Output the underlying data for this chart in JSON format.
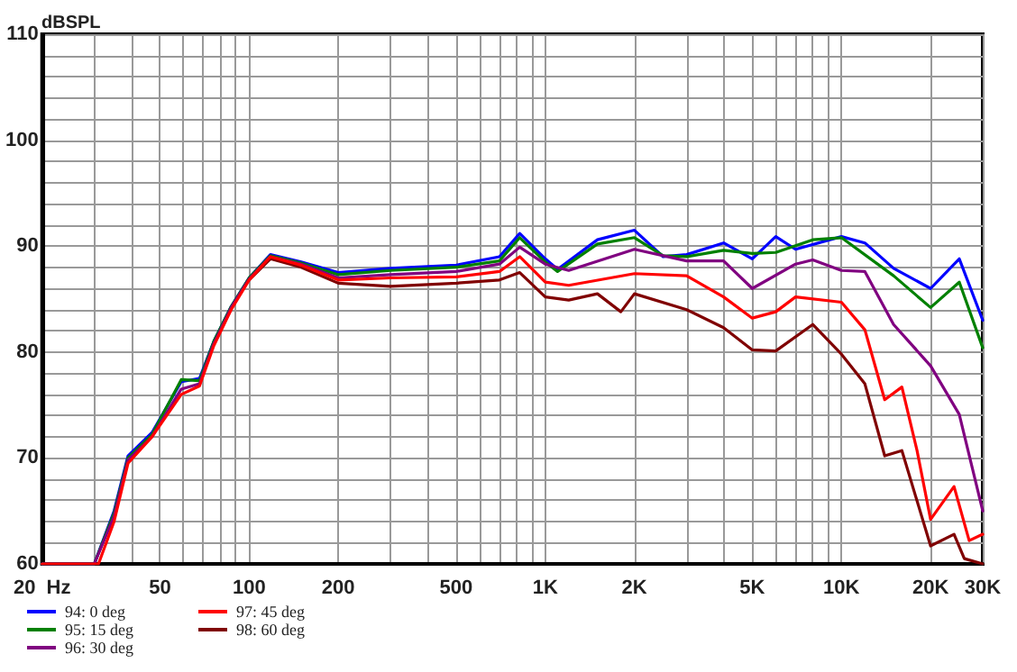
{
  "chart_data": {
    "type": "line",
    "ylabel": "dBSPL",
    "log": "x",
    "grid": true,
    "legend": "bottom left",
    "xlim": [
      20,
      30000
    ],
    "xticks": [
      {
        "value": 20,
        "label": "20  Hz"
      },
      {
        "value": 30,
        "label": null
      },
      {
        "value": 40,
        "label": null
      },
      50,
      {
        "value": 60,
        "label": null
      },
      {
        "value": 70,
        "label": null
      },
      {
        "value": 80,
        "label": null
      },
      {
        "value": 90,
        "label": null
      },
      100,
      200,
      {
        "value": 300,
        "label": null
      },
      {
        "value": 400,
        "label": null
      },
      500,
      {
        "value": 600,
        "label": null
      },
      {
        "value": 700,
        "label": null
      },
      {
        "value": 800,
        "label": null
      },
      {
        "value": 900,
        "label": null
      },
      {
        "value": 1000,
        "label": "1K"
      },
      {
        "value": 2000,
        "label": "2K"
      },
      {
        "value": 3000,
        "label": null
      },
      {
        "value": 4000,
        "label": null
      },
      {
        "value": 5000,
        "label": "5K"
      },
      {
        "value": 6000,
        "label": null
      },
      {
        "value": 7000,
        "label": null
      },
      {
        "value": 8000,
        "label": null
      },
      {
        "value": 9000,
        "label": null
      },
      {
        "value": 10000,
        "label": "10K"
      },
      {
        "value": 20000,
        "label": "20K"
      },
      {
        "value": 30000,
        "label": "30K"
      }
    ],
    "ylim": [
      60,
      110
    ],
    "yticks": [
      60,
      {
        "value": 62,
        "label": null
      },
      {
        "value": 64,
        "label": null
      },
      {
        "value": 66,
        "label": null
      },
      {
        "value": 68,
        "label": null
      },
      70,
      {
        "value": 72,
        "label": null
      },
      {
        "value": 74,
        "label": null
      },
      {
        "value": 76,
        "label": null
      },
      {
        "value": 78,
        "label": null
      },
      80,
      {
        "value": 82,
        "label": null
      },
      {
        "value": 84,
        "label": null
      },
      {
        "value": 86,
        "label": null
      },
      {
        "value": 88,
        "label": null
      },
      90,
      {
        "value": 92,
        "label": null
      },
      {
        "value": 94,
        "label": null
      },
      {
        "value": 96,
        "label": null
      },
      {
        "value": 98,
        "label": null
      },
      100,
      {
        "value": 102,
        "label": null
      },
      {
        "value": 104,
        "label": null
      },
      {
        "value": 106,
        "label": null
      },
      {
        "value": 108,
        "label": null
      },
      110
    ],
    "series": [
      {
        "name": "94: 0 deg",
        "color": "#0000ff",
        "x": [
          20,
          30,
          35,
          39,
          47,
          59,
          68,
          76,
          87,
          100,
          118,
          150,
          200,
          300,
          500,
          700,
          820,
          1000,
          1100,
          1500,
          2000,
          2500,
          3000,
          4000,
          5000,
          6000,
          7000,
          10000,
          12000,
          15000,
          20000,
          25000,
          30000
        ],
        "values": [
          60,
          60,
          65,
          70.2,
          72.4,
          77.2,
          77.5,
          81,
          84.3,
          87,
          89.2,
          88.5,
          87.5,
          87.9,
          88.2,
          89,
          91.2,
          88.8,
          87.8,
          90.6,
          91.5,
          89,
          89.2,
          90.3,
          88.8,
          90.9,
          89.7,
          90.9,
          90.3,
          87.9,
          86,
          88.8,
          83
        ]
      },
      {
        "name": "95: 15 deg",
        "color": "#008000",
        "x": [
          20,
          30,
          35,
          39,
          47,
          59,
          68,
          76,
          87,
          100,
          118,
          150,
          200,
          300,
          500,
          700,
          820,
          1000,
          1100,
          1500,
          2000,
          2500,
          3000,
          4000,
          5000,
          6000,
          8000,
          10000,
          15000,
          20000,
          25000,
          30000
        ],
        "values": [
          60,
          60,
          64.8,
          70,
          72.2,
          77.4,
          77.3,
          81,
          84.3,
          87,
          89.1,
          88.4,
          87.3,
          87.7,
          88,
          88.6,
          90.8,
          88.5,
          87.6,
          90.2,
          90.8,
          89.1,
          89,
          89.6,
          89.3,
          89.4,
          90.6,
          90.8,
          87.2,
          84.2,
          86.6,
          80.4
        ]
      },
      {
        "name": "96: 30 deg",
        "color": "#800080",
        "x": [
          20,
          30,
          35,
          39,
          47,
          59,
          68,
          76,
          87,
          100,
          118,
          150,
          200,
          300,
          500,
          700,
          820,
          1000,
          1200,
          2000,
          3000,
          4000,
          5000,
          7000,
          8000,
          10000,
          12000,
          15000,
          20000,
          25000,
          30000
        ],
        "values": [
          60,
          60,
          64.5,
          69.8,
          72,
          76.5,
          77,
          80.8,
          84.2,
          86.9,
          89,
          88.3,
          87,
          87.3,
          87.6,
          88.3,
          89.9,
          88.3,
          87.7,
          89.7,
          88.6,
          88.6,
          86,
          88.3,
          88.7,
          87.7,
          87.6,
          82.6,
          78.7,
          74.1,
          65
        ]
      },
      {
        "name": "97: 45 deg",
        "color": "#ff0000",
        "x": [
          20,
          31,
          35,
          39,
          47,
          59,
          68,
          76,
          87,
          100,
          118,
          150,
          200,
          300,
          500,
          700,
          820,
          1000,
          1200,
          2000,
          3000,
          4000,
          5000,
          6000,
          7000,
          10000,
          12000,
          14000,
          16000,
          18000,
          20000,
          24000,
          27000,
          30000
        ],
        "values": [
          60,
          60,
          64,
          69.5,
          72,
          76,
          76.8,
          80.6,
          84,
          86.8,
          89,
          88.2,
          86.8,
          87,
          87.1,
          87.6,
          89,
          86.6,
          86.3,
          87.4,
          87.2,
          85.2,
          83.2,
          83.8,
          85.2,
          84.7,
          82.1,
          75.5,
          76.7,
          70.7,
          64.2,
          67.3,
          62.2,
          62.8
        ]
      },
      {
        "name": "98: 60 deg",
        "color": "#800000",
        "x": [
          100,
          118,
          150,
          200,
          300,
          500,
          700,
          820,
          1000,
          1200,
          1500,
          1800,
          2000,
          3000,
          4000,
          5000,
          6000,
          8000,
          10000,
          12000,
          14000,
          16000,
          20000,
          24000,
          26000,
          30000
        ],
        "values": [
          86.8,
          88.8,
          88,
          86.5,
          86.2,
          86.5,
          86.8,
          87.5,
          85.2,
          84.9,
          85.5,
          83.8,
          85.5,
          84,
          82.3,
          80.2,
          80.1,
          82.6,
          79.8,
          77,
          70.2,
          70.7,
          61.7,
          62.8,
          60.5,
          60
        ]
      }
    ]
  }
}
